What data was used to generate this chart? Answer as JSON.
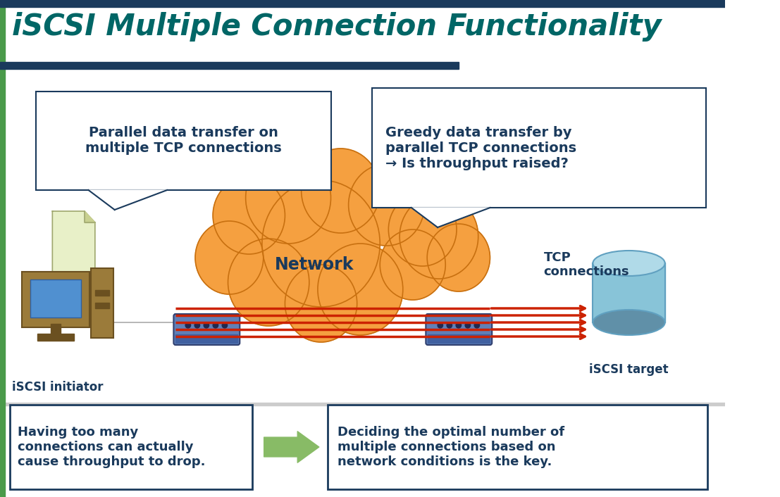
{
  "title": "iSCSI Multiple Connection Functionality",
  "title_color": "#006666",
  "title_fontsize": 30,
  "bg_color": "#ffffff",
  "header_bar_color": "#1a3a5c",
  "left_bar_color": "#4a9a4a",
  "top_box1_text": "Parallel data transfer on\nmultiple TCP connections",
  "top_box2_text": "Greedy data transfer by\nparallel TCP connections\n→ Is throughput raised?",
  "tcp_label": "TCP\nconnections",
  "network_label": "Network",
  "initiator_label": "iSCSI initiator",
  "target_label": "iSCSI target",
  "bottom_box1_text": "Having too many\nconnections can actually\ncause throughput to drop.",
  "bottom_box2_text": "Deciding the optimal number of\nmultiple connections based on\nnetwork conditions is the key.",
  "cloud_color": "#f5a040",
  "cloud_edge_color": "#c87010",
  "line_color": "#cc2200",
  "box_bg": "#ffffff",
  "box_edge_color": "#1a3a5c",
  "text_color": "#1a3a5c",
  "arrow_color": "#88bb66",
  "num_lines": 5
}
